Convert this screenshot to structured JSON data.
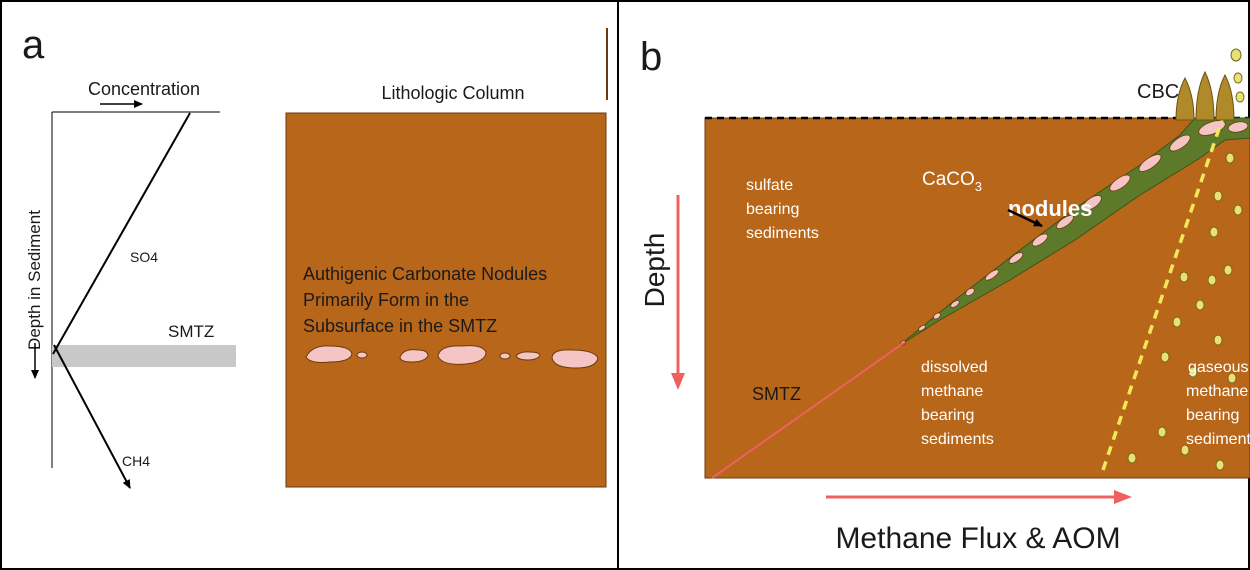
{
  "panel_a": {
    "label": "a",
    "concentration_label": "Concentration",
    "depth_label": "Depth in Sediment",
    "so4_label": "SO4",
    "ch4_label": "CH4",
    "smtz_label": "SMTZ",
    "lithologic_title": "Lithologic Column",
    "nodule_caption": [
      "Authigenic Carbonate Nodules",
      "Primarily Form in the",
      "Subsurface in the SMTZ"
    ]
  },
  "panel_b": {
    "label": "b",
    "cbc_label": "CBC",
    "caco3_label": "CaCO",
    "caco3_subscript": "3",
    "nodules_label": "nodules",
    "depth_label": "Depth",
    "smtz_label": "SMTZ",
    "sulfate_lines": [
      "sulfate",
      "bearing",
      "sediments"
    ],
    "dissolved_lines": [
      "dissolved",
      "methane",
      "bearing",
      "sediments"
    ],
    "gaseous_lines": [
      "gaseous",
      "methane",
      "bearing",
      "sediments"
    ],
    "flux_label": "Methane Flux & AOM"
  },
  "colors": {
    "sediment": "#b8661a",
    "sediment_border": "#6b3a0c",
    "smtz_band": "#c8c8c8",
    "nodule": "#f5c4c4",
    "green_layer": "#5c7a2a",
    "arrow_red": "#f06060",
    "bubble": "#e8e07a",
    "chimney": "#b08a2a"
  }
}
